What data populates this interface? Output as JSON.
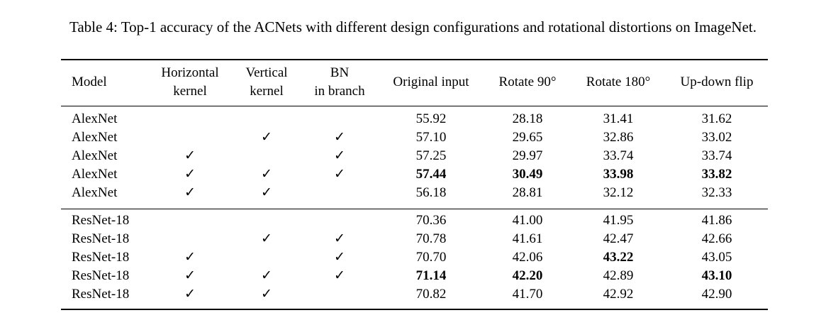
{
  "caption": "Table 4: Top-1 accuracy of the ACNets with different design configurations and rotational distortions on ImageNet.",
  "table": {
    "headers": {
      "model": "Model",
      "horizontal_1": "Horizontal",
      "horizontal_2": "kernel",
      "vertical_1": "Vertical",
      "vertical_2": "kernel",
      "bn_1": "BN",
      "bn_2": "in branch",
      "original": "Original input",
      "rot90": "Rotate 90°",
      "rot180": "Rotate 180°",
      "flip": "Up-down flip"
    },
    "check_mark": "✓",
    "rows": [
      {
        "model": "AlexNet",
        "h": "",
        "v": "",
        "bn": "",
        "orig": "55.92",
        "r90": "28.18",
        "r180": "31.41",
        "flip": "31.62",
        "bold": []
      },
      {
        "model": "AlexNet",
        "h": "",
        "v": "✓",
        "bn": "✓",
        "orig": "57.10",
        "r90": "29.65",
        "r180": "32.86",
        "flip": "33.02",
        "bold": []
      },
      {
        "model": "AlexNet",
        "h": "✓",
        "v": "",
        "bn": "✓",
        "orig": "57.25",
        "r90": "29.97",
        "r180": "33.74",
        "flip": "33.74",
        "bold": []
      },
      {
        "model": "AlexNet",
        "h": "✓",
        "v": "✓",
        "bn": "✓",
        "orig": "57.44",
        "r90": "30.49",
        "r180": "33.98",
        "flip": "33.82",
        "bold": [
          "orig",
          "r90",
          "r180",
          "flip"
        ]
      },
      {
        "model": "AlexNet",
        "h": "✓",
        "v": "✓",
        "bn": "",
        "orig": "56.18",
        "r90": "28.81",
        "r180": "32.12",
        "flip": "32.33",
        "bold": []
      },
      {
        "model": "ResNet-18",
        "h": "",
        "v": "",
        "bn": "",
        "orig": "70.36",
        "r90": "41.00",
        "r180": "41.95",
        "flip": "41.86",
        "bold": []
      },
      {
        "model": "ResNet-18",
        "h": "",
        "v": "✓",
        "bn": "✓",
        "orig": "70.78",
        "r90": "41.61",
        "r180": "42.47",
        "flip": "42.66",
        "bold": []
      },
      {
        "model": "ResNet-18",
        "h": "✓",
        "v": "",
        "bn": "✓",
        "orig": "70.70",
        "r90": "42.06",
        "r180": "43.22",
        "flip": "43.05",
        "bold": [
          "r180"
        ]
      },
      {
        "model": "ResNet-18",
        "h": "✓",
        "v": "✓",
        "bn": "✓",
        "orig": "71.14",
        "r90": "42.20",
        "r180": "42.89",
        "flip": "43.10",
        "bold": [
          "orig",
          "r90",
          "flip"
        ]
      },
      {
        "model": "ResNet-18",
        "h": "✓",
        "v": "✓",
        "bn": "",
        "orig": "70.82",
        "r90": "41.70",
        "r180": "42.92",
        "flip": "42.90",
        "bold": []
      }
    ]
  }
}
